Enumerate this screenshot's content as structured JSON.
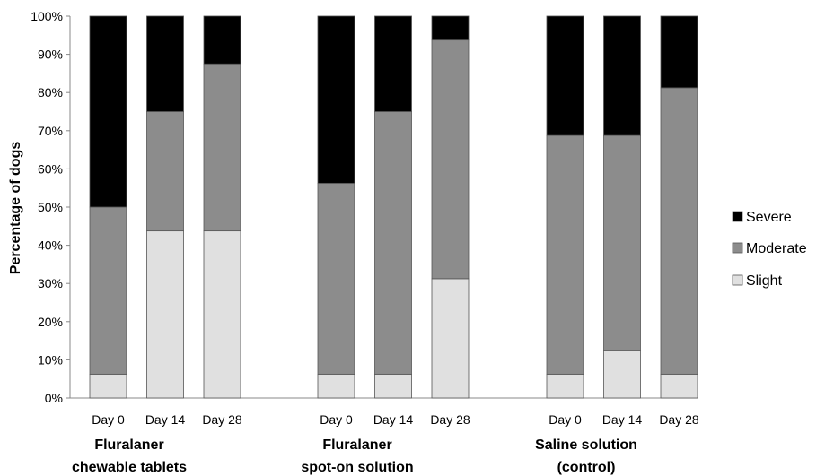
{
  "chart_data": {
    "type": "bar",
    "stacked": true,
    "ylabel": "Percentage of dogs",
    "ylim": [
      0,
      100
    ],
    "yticks": [
      "0%",
      "10%",
      "20%",
      "30%",
      "40%",
      "50%",
      "60%",
      "70%",
      "80%",
      "90%",
      "100%"
    ],
    "grid": false,
    "legend_position": "right",
    "groups": [
      {
        "label_lines": [
          "Fluralaner",
          "chewable tablets"
        ],
        "categories": [
          "Day 0",
          "Day 14",
          "Day 28"
        ]
      },
      {
        "label_lines": [
          "Fluralaner",
          "spot-on solution"
        ],
        "categories": [
          "Day 0",
          "Day 14",
          "Day 28"
        ]
      },
      {
        "label_lines": [
          "Saline solution",
          "(control)"
        ],
        "categories": [
          "Day 0",
          "Day 14",
          "Day 28"
        ]
      }
    ],
    "series": [
      {
        "name": "Slight",
        "color": "#e0e0e0",
        "values": [
          6.25,
          43.75,
          43.75,
          6.25,
          6.25,
          31.25,
          6.25,
          12.5,
          6.25
        ]
      },
      {
        "name": "Moderate",
        "color": "#8c8c8c",
        "values": [
          43.75,
          31.25,
          43.75,
          50.0,
          68.75,
          62.5,
          62.5,
          56.25,
          75.0
        ]
      },
      {
        "name": "Severe",
        "color": "#000000",
        "values": [
          50.0,
          25.0,
          12.5,
          43.75,
          25.0,
          6.25,
          31.25,
          31.25,
          18.75
        ]
      }
    ],
    "legend_order": [
      "Severe",
      "Moderate",
      "Slight"
    ]
  }
}
